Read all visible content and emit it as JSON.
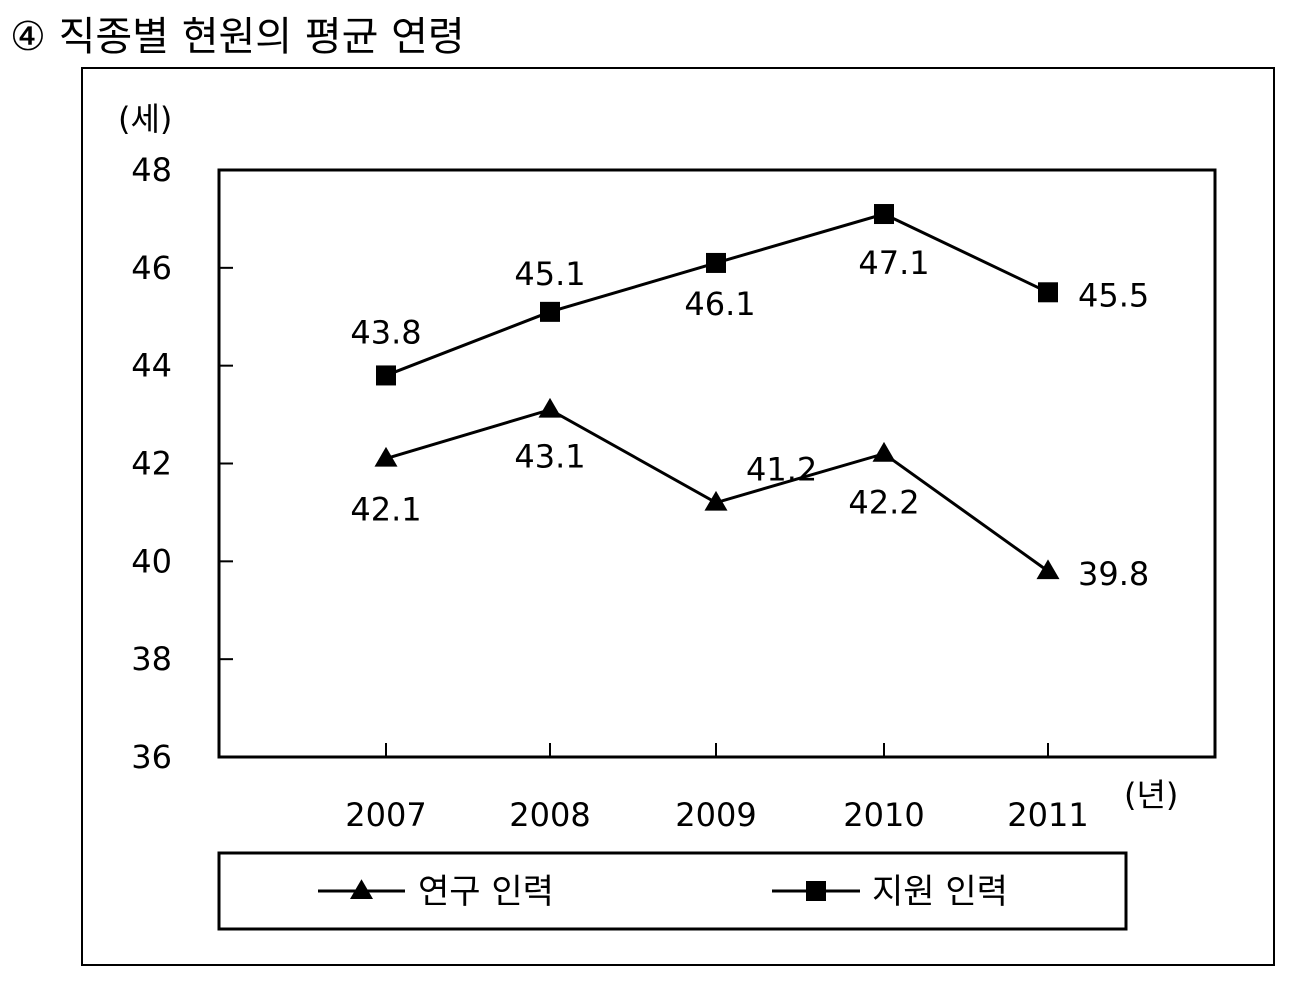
{
  "heading": "④ 직종별 현원의 평균 연령",
  "chart_data": {
    "type": "line",
    "title": "④ 직종별 현원의 평균 연령",
    "x": [
      "2007",
      "2008",
      "2009",
      "2010",
      "2011"
    ],
    "xlabel": "(년)",
    "ylabel": "(세)",
    "ylim": [
      36,
      48
    ],
    "yticks": [
      "48",
      "46",
      "44",
      "42",
      "40",
      "38",
      "36"
    ],
    "grid": false,
    "legend_position": "bottom",
    "series": [
      {
        "name": "연구 인력",
        "marker": "triangle",
        "values": [
          42.1,
          43.1,
          41.2,
          42.2,
          39.8
        ],
        "labels": [
          "42.1",
          "43.1",
          "41.2",
          "42.2",
          "39.8"
        ]
      },
      {
        "name": "지원 인력",
        "marker": "square",
        "values": [
          43.8,
          45.1,
          46.1,
          47.1,
          45.5
        ],
        "labels": [
          "43.8",
          "45.1",
          "46.1",
          "47.1",
          "45.5"
        ]
      }
    ]
  }
}
